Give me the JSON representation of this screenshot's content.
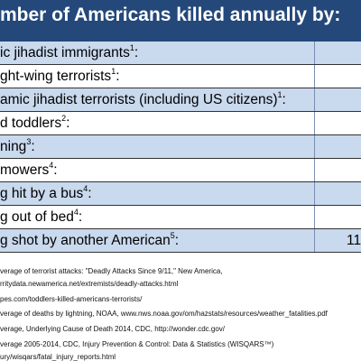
{
  "header": {
    "title": "mber of Americans killed annually by:"
  },
  "table": {
    "rows": [
      {
        "label": "ic jihadist immigrants",
        "note": "1",
        "punct": ":"
      },
      {
        "label": "ght-wing terrorists",
        "note": "1",
        "punct": ":"
      },
      {
        "label": "amic jihadist terrorists (including US citizens)",
        "note": "1",
        "punct": ":"
      },
      {
        "label": "d toddlers",
        "note": "2",
        "punct": ":"
      },
      {
        "label": "ning",
        "note": "3",
        "punct": ":"
      },
      {
        "label": "mowers",
        "note": "4",
        "punct": ":"
      },
      {
        "label": "g hit by a bus",
        "note": "4",
        "punct": ":"
      },
      {
        "label": "g out of bed",
        "note": "4",
        "punct": ":"
      },
      {
        "label": "g shot by another American",
        "note": "5",
        "punct": ":",
        "value": 11
      }
    ]
  },
  "footnotes": [
    "verage of terrorist attacks: \"Deadly Attacks Since 9/11,\" New America,",
    "rritydata.newamerica.net/extremists/deadly-attacks.html",
    "pes.com/toddlers-killed-americans-terrorists/",
    "verage of deaths by lightning, NOAA, www.nws.noaa.gov/om/hazstats/resources/weather_fatalities.pdf",
    "verage, Underlying Cause of Death 2014, CDC, http://wonder.cdc.gov/",
    "verage 2005-2014, CDC, Injury Prevention & Control: Data & Statistics (WISQARS™)",
    "ury/wisqars/fatal_injury_reports.html"
  ]
}
